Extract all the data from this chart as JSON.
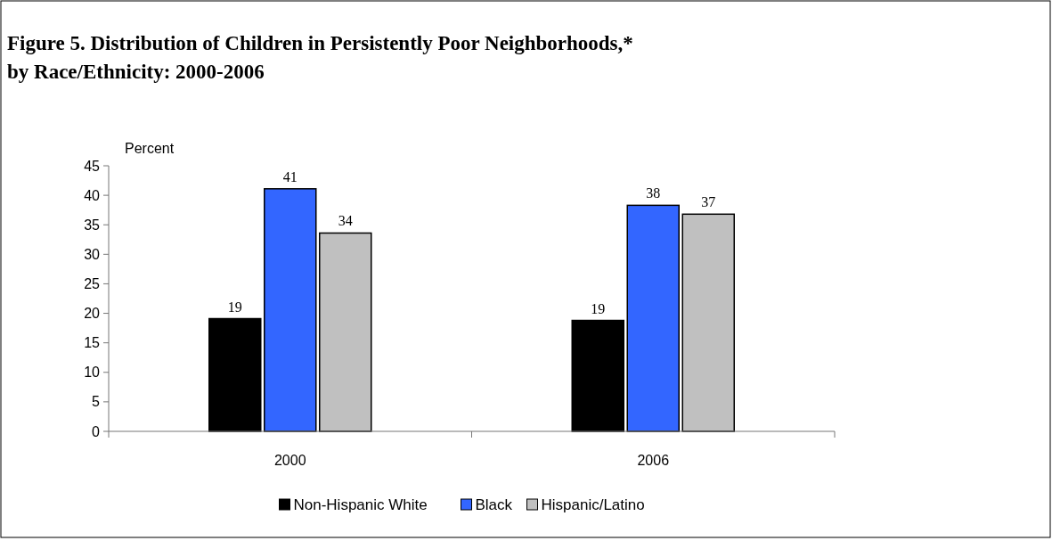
{
  "chart_data": {
    "type": "bar",
    "title": "Figure 5. Distribution of Children in Persistently Poor Neighborhoods,*\nby Race/Ethnicity: 2000-2006",
    "ylabel": "Percent",
    "categories": [
      "2000",
      "2006"
    ],
    "series": [
      {
        "name": "Non-Hispanic White",
        "color": "#000000",
        "values": [
          19.1,
          18.8
        ],
        "value_labels": [
          "19",
          "19"
        ]
      },
      {
        "name": "Black",
        "color": "#3366ff",
        "values": [
          41.1,
          38.3
        ],
        "value_labels": [
          "41",
          "38"
        ]
      },
      {
        "name": "Hispanic/Latino",
        "color": "#c0c0c0",
        "values": [
          33.6,
          36.8
        ],
        "value_labels": [
          "34",
          "37"
        ]
      }
    ],
    "ylim": [
      0,
      45
    ],
    "yticks": [
      0,
      5,
      10,
      15,
      20,
      25,
      30,
      35,
      40,
      45
    ],
    "grid": false,
    "legend": "bottom"
  }
}
